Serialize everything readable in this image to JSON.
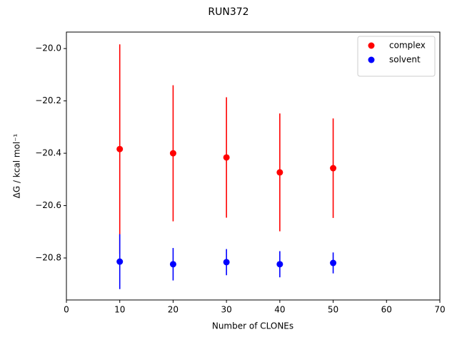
{
  "chart_data": {
    "type": "errorbar_scatter",
    "title": "RUN372",
    "x_label": "Number of CLONEs",
    "y_label": "ΔG / kcal mol⁻¹",
    "x": [
      10,
      20,
      30,
      40,
      50
    ],
    "series": [
      {
        "name": "complex",
        "color": "#ff0000",
        "values": [
          -20.384,
          -20.4,
          -20.416,
          -20.473,
          -20.457
        ],
        "errors": [
          0.4,
          0.26,
          0.23,
          0.225,
          0.19
        ]
      },
      {
        "name": "solvent",
        "color": "#0000ff",
        "values": [
          -20.814,
          -20.824,
          -20.816,
          -20.824,
          -20.819
        ],
        "errors": [
          0.105,
          0.062,
          0.05,
          0.05,
          0.04
        ]
      }
    ],
    "xlim": [
      0,
      70
    ],
    "xticks": [
      0,
      10,
      20,
      30,
      40,
      50,
      60,
      70
    ],
    "ylim": [
      -20.9605,
      -19.937
    ],
    "yticks": [
      {
        "value": -20.8,
        "label": "−20.8"
      },
      {
        "value": -20.6,
        "label": "−20.6"
      },
      {
        "value": -20.4,
        "label": "−20.4"
      },
      {
        "value": -20.2,
        "label": "−20.2"
      },
      {
        "value": -20.0,
        "label": "−20.0"
      }
    ],
    "grid": false,
    "legend": "upper-right"
  }
}
